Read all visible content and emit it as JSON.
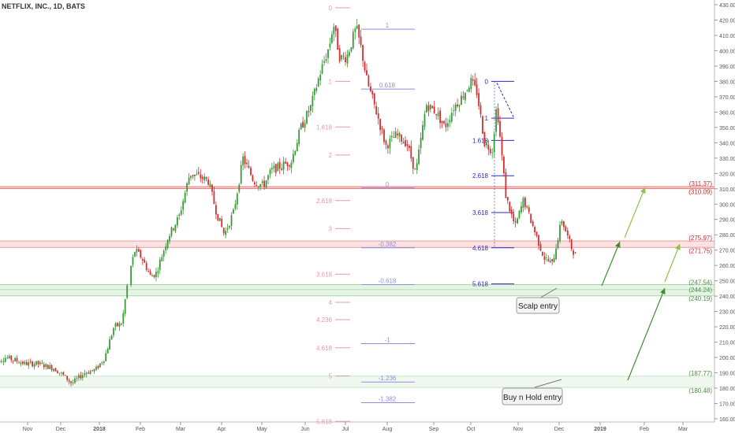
{
  "chart_data": {
    "type": "candlestick",
    "title": "NETFLIX, INC., 1D, BATS",
    "x_ticks": [
      "Nov",
      "Dec",
      "2018",
      "Feb",
      "Mar",
      "Apr",
      "May",
      "Jun",
      "Jul",
      "Aug",
      "Sep",
      "Oct",
      "Nov",
      "Dec",
      "2019",
      "Feb",
      "Mar"
    ],
    "y_ticks": [
      430,
      420,
      410,
      400,
      390,
      380,
      370,
      360,
      350,
      340,
      330,
      320,
      310,
      300,
      290,
      280,
      270,
      260,
      250,
      240,
      230,
      220,
      210,
      200,
      190,
      180,
      170,
      160
    ],
    "ylim": [
      155,
      432
    ],
    "grid": false,
    "price_path": [
      {
        "t": "2017-10-05",
        "p": 197
      },
      {
        "t": "2017-10-15",
        "p": 200
      },
      {
        "t": "2017-10-30",
        "p": 196
      },
      {
        "t": "2017-11-10",
        "p": 196
      },
      {
        "t": "2017-11-25",
        "p": 193
      },
      {
        "t": "2017-12-05",
        "p": 187
      },
      {
        "t": "2017-12-10",
        "p": 183
      },
      {
        "t": "2017-12-20",
        "p": 190
      },
      {
        "t": "2017-12-29",
        "p": 192
      },
      {
        "t": "2018-01-05",
        "p": 200
      },
      {
        "t": "2018-01-12",
        "p": 220
      },
      {
        "t": "2018-01-18",
        "p": 222
      },
      {
        "t": "2018-01-23",
        "p": 253
      },
      {
        "t": "2018-01-28",
        "p": 270
      },
      {
        "t": "2018-02-02",
        "p": 265
      },
      {
        "t": "2018-02-08",
        "p": 253
      },
      {
        "t": "2018-02-12",
        "p": 255
      },
      {
        "t": "2018-02-20",
        "p": 278
      },
      {
        "t": "2018-02-28",
        "p": 292
      },
      {
        "t": "2018-03-08",
        "p": 320
      },
      {
        "t": "2018-03-15",
        "p": 318
      },
      {
        "t": "2018-03-22",
        "p": 315
      },
      {
        "t": "2018-03-28",
        "p": 295
      },
      {
        "t": "2018-04-03",
        "p": 280
      },
      {
        "t": "2018-04-10",
        "p": 295
      },
      {
        "t": "2018-04-17",
        "p": 330
      },
      {
        "t": "2018-04-25",
        "p": 315
      },
      {
        "t": "2018-05-02",
        "p": 312
      },
      {
        "t": "2018-05-08",
        "p": 322
      },
      {
        "t": "2018-05-15",
        "p": 325
      },
      {
        "t": "2018-05-22",
        "p": 328
      },
      {
        "t": "2018-05-29",
        "p": 350
      },
      {
        "t": "2018-06-05",
        "p": 363
      },
      {
        "t": "2018-06-12",
        "p": 385
      },
      {
        "t": "2018-06-19",
        "p": 403
      },
      {
        "t": "2018-06-22",
        "p": 418
      },
      {
        "t": "2018-06-27",
        "p": 395
      },
      {
        "t": "2018-07-02",
        "p": 396
      },
      {
        "t": "2018-07-09",
        "p": 415
      },
      {
        "t": "2018-07-13",
        "p": 400
      },
      {
        "t": "2018-07-17",
        "p": 380
      },
      {
        "t": "2018-07-24",
        "p": 360
      },
      {
        "t": "2018-07-31",
        "p": 338
      },
      {
        "t": "2018-08-07",
        "p": 345
      },
      {
        "t": "2018-08-14",
        "p": 340
      },
      {
        "t": "2018-08-20",
        "p": 320
      },
      {
        "t": "2018-08-27",
        "p": 365
      },
      {
        "t": "2018-09-03",
        "p": 360
      },
      {
        "t": "2018-09-10",
        "p": 350
      },
      {
        "t": "2018-09-17",
        "p": 363
      },
      {
        "t": "2018-09-24",
        "p": 370
      },
      {
        "t": "2018-10-01",
        "p": 380
      },
      {
        "t": "2018-10-05",
        "p": 373
      },
      {
        "t": "2018-10-10",
        "p": 340
      },
      {
        "t": "2018-10-15",
        "p": 335
      },
      {
        "t": "2018-10-18",
        "p": 365
      },
      {
        "t": "2018-10-24",
        "p": 305
      },
      {
        "t": "2018-10-30",
        "p": 285
      },
      {
        "t": "2018-11-05",
        "p": 303
      },
      {
        "t": "2018-11-12",
        "p": 285
      },
      {
        "t": "2018-11-20",
        "p": 265
      },
      {
        "t": "2018-11-26",
        "p": 261
      },
      {
        "t": "2018-12-03",
        "p": 290
      },
      {
        "t": "2018-12-10",
        "p": 272
      },
      {
        "t": "2018-12-14",
        "p": 266
      }
    ],
    "zones": [
      {
        "low": 310.09,
        "high": 311.37,
        "color": "#e57373",
        "labels": [
          "(311.37)",
          "(310.09)"
        ]
      },
      {
        "low": 271.75,
        "high": 275.97,
        "color": "#ef9a9a",
        "labels": [
          "(275.97)",
          "(271.75)"
        ]
      },
      {
        "low": 240.19,
        "high": 247.54,
        "color": "#a5d6a7",
        "labels": [
          "(247.54)",
          "(244.24)",
          "(240.19)"
        ],
        "mid": 244.24
      },
      {
        "low": 180.48,
        "high": 187.77,
        "color": "#c8e6c9",
        "labels": [
          "(187.77)",
          "(180.48)"
        ]
      }
    ],
    "fib_sets": [
      {
        "color": "#e99aa3",
        "levels": [
          {
            "label": "0",
            "price": 428.0
          },
          {
            "label": "1",
            "price": 380.0
          },
          {
            "label": "1.618",
            "price": 350.3
          },
          {
            "label": "2",
            "price": 332.0
          },
          {
            "label": "2.618",
            "price": 302.3
          },
          {
            "label": "3",
            "price": 284.0
          },
          {
            "label": "3.618",
            "price": 254.3
          },
          {
            "label": "4",
            "price": 236.0
          },
          {
            "label": "4.236",
            "price": 224.7
          },
          {
            "label": "4.618",
            "price": 206.3
          },
          {
            "label": "5",
            "price": 188.0
          },
          {
            "label": "5.618",
            "price": 158.3
          }
        ]
      },
      {
        "color": "#8e8ed8",
        "levels": [
          {
            "label": "1",
            "price": 414.0
          },
          {
            "label": "0.618",
            "price": 375.0
          },
          {
            "label": "0",
            "price": 310.5
          },
          {
            "label": "-0.382",
            "price": 271.5
          },
          {
            "label": "-0.618",
            "price": 247.5
          },
          {
            "label": "-1",
            "price": 209.0
          },
          {
            "label": "-1.236",
            "price": 184.0
          },
          {
            "label": "-1.382",
            "price": 170.5
          }
        ]
      },
      {
        "color": "#2b2bb8",
        "levels": [
          {
            "label": "0",
            "price": 380.0
          },
          {
            "label": "1",
            "price": 356.0
          },
          {
            "label": "1.618",
            "price": 341.5
          },
          {
            "label": "2.618",
            "price": 318.5
          },
          {
            "label": "3.618",
            "price": 294.5
          },
          {
            "label": "4.618",
            "price": 271.5
          },
          {
            "label": "5.618",
            "price": 248.0
          }
        ]
      }
    ],
    "annotations": [
      "Scalp entry",
      "Buy n Hold entry"
    ]
  }
}
